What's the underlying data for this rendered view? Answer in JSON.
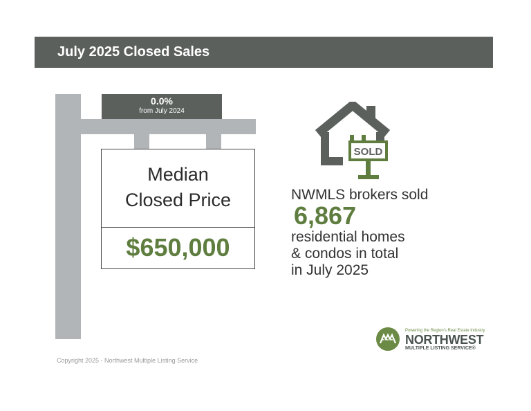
{
  "header": {
    "title": "July 2025 Closed Sales"
  },
  "change": {
    "percent": "0.0%",
    "comparison": "from July 2024"
  },
  "sign": {
    "label_line1": "Median",
    "label_line2": "Closed Price",
    "price": "$650,000"
  },
  "house_icon": {
    "icon": "house-sold-sign-icon",
    "badge_text": "SOLD"
  },
  "summary": {
    "lead": "NWMLS brokers sold",
    "count": "6,867",
    "line1": "residential homes",
    "line2": "& condos in total",
    "line3": "in July 2025"
  },
  "footer": {
    "copyright": "Copyright 2025 - Northwest Multiple Listing Service"
  },
  "logo": {
    "icon": "nwmls-mountains-icon",
    "tagline": "Powering the Region's Real Estate Industry",
    "name": "NORTHWEST",
    "subname": "MULTIPLE LISTING SERVICE®"
  },
  "colors": {
    "header_bg": "#5b605d",
    "post": "#b1b5b8",
    "accent_green": "#5e7d3f",
    "text_dark": "#333333"
  }
}
